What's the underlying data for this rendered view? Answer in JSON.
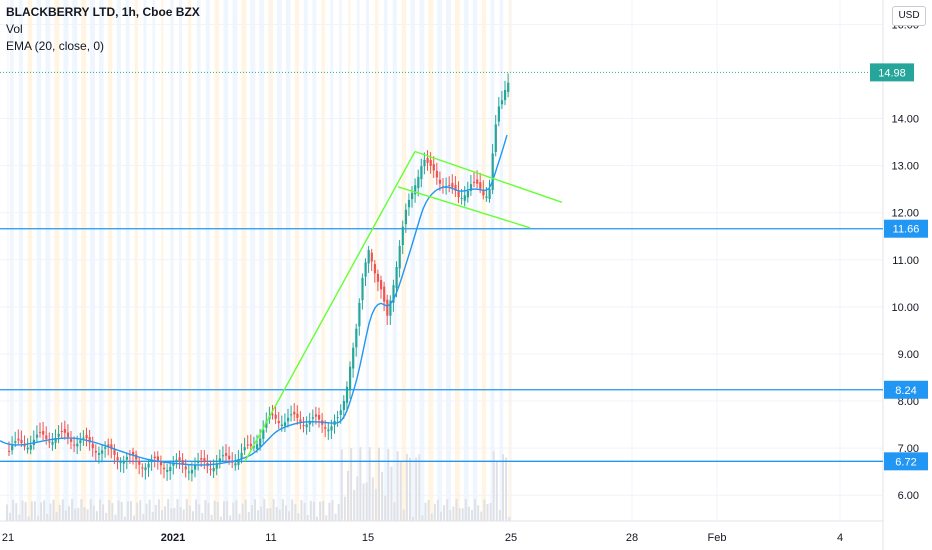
{
  "legend": {
    "title": "BLACKBERRY LTD, 1h, Cboe BZX",
    "vol": "Vol",
    "ema": "EMA (20, close, 0)"
  },
  "currency": "USD",
  "chart_data": {
    "type": "candlestick",
    "symbol": "BLACKBERRY LTD",
    "interval": "1h",
    "exchange": "Cboe BZX",
    "y_ticks": [
      6.0,
      7.0,
      8.0,
      9.0,
      10.0,
      11.0,
      12.0,
      13.0,
      14.0,
      16.0
    ],
    "ylim": [
      5.75,
      16.05
    ],
    "x_tick_labels": [
      "21",
      "2021",
      "11",
      "15",
      "25",
      "28",
      "Feb",
      "4"
    ],
    "last_price": 14.98,
    "horizontal_levels": [
      11.66,
      8.24,
      6.72
    ],
    "colors": {
      "up": "#26a69a",
      "down": "#ef5350",
      "ema": "#2196f3",
      "level": "#2196f3",
      "trendline": "#66ff33",
      "last_price_label": "#26a69a"
    }
  }
}
